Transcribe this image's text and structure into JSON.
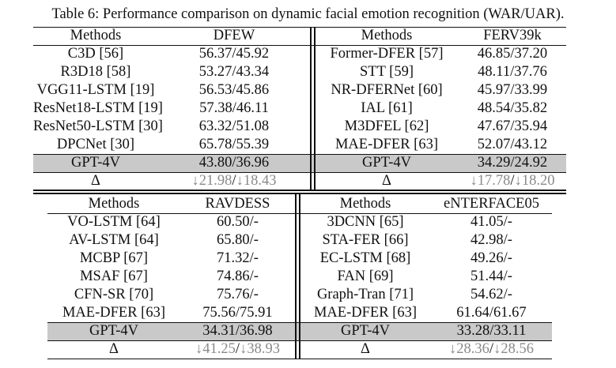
{
  "caption": "Table 6: Performance comparison on dynamic facial emotion recognition (WAR/UAR).",
  "top": {
    "left": {
      "header": [
        "Methods",
        "DFEW"
      ],
      "rows": [
        [
          "C3D [56]",
          "56.37/45.92"
        ],
        [
          "R3D18 [58]",
          "53.27/43.34"
        ],
        [
          "VGG11-LSTM [19]",
          "56.53/45.86"
        ],
        [
          "ResNet18-LSTM [19]",
          "57.38/46.11"
        ],
        [
          "ResNet50-LSTM [30]",
          "63.32/51.08"
        ],
        [
          "DPCNet [30]",
          "65.78/55.39"
        ]
      ],
      "gpt": [
        "GPT-4V",
        "43.80/36.96"
      ],
      "delta": {
        "symbol": "Δ",
        "arrow": "↓",
        "war": "21.98",
        "sep": "/",
        "uar": "18.43"
      }
    },
    "right": {
      "header": [
        "Methods",
        "FERV39k"
      ],
      "rows": [
        [
          "Former-DFER [57]",
          "46.85/37.20"
        ],
        [
          "STT [59]",
          "48.11/37.76"
        ],
        [
          "NR-DFERNet [60]",
          "45.97/33.99"
        ],
        [
          "IAL [61]",
          "48.54/35.82"
        ],
        [
          "M3DFEL [62]",
          "47.67/35.94"
        ],
        [
          "MAE-DFER [63]",
          "52.07/43.12"
        ]
      ],
      "gpt": [
        "GPT-4V",
        "34.29/24.92"
      ],
      "delta": {
        "symbol": "Δ",
        "arrow": "↓",
        "war": "17.78",
        "sep": "/",
        "uar": "18.20"
      }
    }
  },
  "bottom": {
    "left": {
      "header": [
        "Methods",
        "RAVDESS"
      ],
      "rows": [
        [
          "VO-LSTM [64]",
          "60.50/-"
        ],
        [
          "AV-LSTM [64]",
          "65.80/-"
        ],
        [
          "MCBP [67]",
          "71.32/-"
        ],
        [
          "MSAF [67]",
          "74.86/-"
        ],
        [
          "CFN-SR [70]",
          "75.76/-"
        ],
        [
          "MAE-DFER [63]",
          "75.56/75.91"
        ]
      ],
      "gpt": [
        "GPT-4V",
        "34.31/36.98"
      ],
      "delta": {
        "symbol": "Δ",
        "arrow": "↓",
        "war": "41.25",
        "sep": "/",
        "uar": "38.93"
      }
    },
    "right": {
      "header": [
        "Methods",
        "eNTERFACE05"
      ],
      "rows": [
        [
          "3DCNN [65]",
          "41.05/-"
        ],
        [
          "STA-FER [66]",
          "42.98/-"
        ],
        [
          "EC-LSTM [68]",
          "49.26/-"
        ],
        [
          "FAN [69]",
          "51.44/-"
        ],
        [
          "Graph-Tran [71]",
          "54.62/-"
        ],
        [
          "MAE-DFER [63]",
          "61.64/61.67"
        ]
      ],
      "gpt": [
        "GPT-4V",
        "33.28/33.11"
      ],
      "delta": {
        "symbol": "Δ",
        "arrow": "↓",
        "war": "28.36",
        "sep": "/",
        "uar": "28.56"
      }
    }
  }
}
